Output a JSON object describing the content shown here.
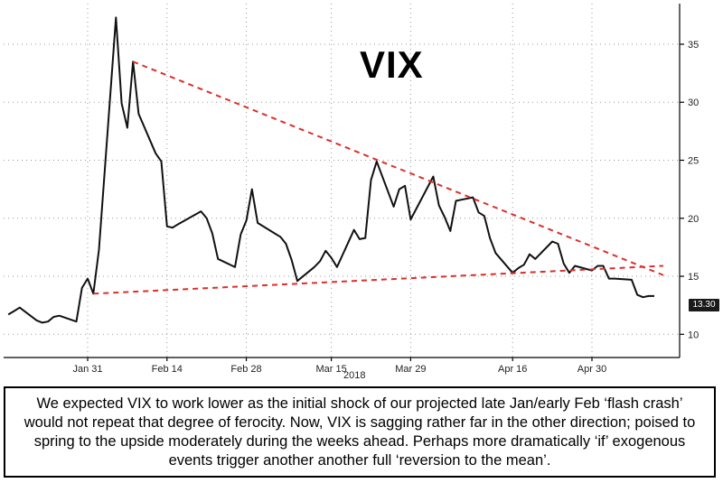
{
  "chart_data": {
    "type": "line",
    "title": "VIX",
    "year_label": "2018",
    "x_tick_labels": [
      "Jan 31",
      "Feb 14",
      "Feb 28",
      "Mar 15",
      "Mar 29",
      "Apr 16",
      "Apr 30"
    ],
    "y_ticks": [
      10,
      15,
      20,
      25,
      30,
      35
    ],
    "ylim": [
      8,
      38.5
    ],
    "grid": true,
    "y_axis_position": "right",
    "last_value_label": "13.30",
    "series": [
      {
        "color": "#111111",
        "x": [
          "2018-01-17",
          "2018-01-18",
          "2018-01-19",
          "2018-01-22",
          "2018-01-23",
          "2018-01-24",
          "2018-01-25",
          "2018-01-26",
          "2018-01-29",
          "2018-01-30",
          "2018-01-31",
          "2018-02-01",
          "2018-02-02",
          "2018-02-05",
          "2018-02-06",
          "2018-02-07",
          "2018-02-08",
          "2018-02-09",
          "2018-02-12",
          "2018-02-13",
          "2018-02-14",
          "2018-02-15",
          "2018-02-16",
          "2018-02-20",
          "2018-02-21",
          "2018-02-22",
          "2018-02-23",
          "2018-02-26",
          "2018-02-27",
          "2018-02-28",
          "2018-03-01",
          "2018-03-02",
          "2018-03-05",
          "2018-03-06",
          "2018-03-07",
          "2018-03-08",
          "2018-03-09",
          "2018-03-12",
          "2018-03-13",
          "2018-03-14",
          "2018-03-15",
          "2018-03-16",
          "2018-03-19",
          "2018-03-20",
          "2018-03-21",
          "2018-03-22",
          "2018-03-23",
          "2018-03-26",
          "2018-03-27",
          "2018-03-28",
          "2018-03-29",
          "2018-04-02",
          "2018-04-03",
          "2018-04-04",
          "2018-04-05",
          "2018-04-06",
          "2018-04-09",
          "2018-04-10",
          "2018-04-11",
          "2018-04-12",
          "2018-04-13",
          "2018-04-16",
          "2018-04-17",
          "2018-04-18",
          "2018-04-19",
          "2018-04-20",
          "2018-04-23",
          "2018-04-24",
          "2018-04-25",
          "2018-04-26",
          "2018-04-27",
          "2018-04-30",
          "2018-05-01",
          "2018-05-02",
          "2018-05-03",
          "2018-05-04",
          "2018-05-07",
          "2018-05-08",
          "2018-05-09",
          "2018-05-10",
          "2018-05-11"
        ],
        "values": [
          11.7,
          12.0,
          12.3,
          11.2,
          11.0,
          11.1,
          11.5,
          11.6,
          11.1,
          14.0,
          14.8,
          13.5,
          17.3,
          37.3,
          29.9,
          27.8,
          33.5,
          29.0,
          25.6,
          24.9,
          19.3,
          19.2,
          19.5,
          20.6,
          20.0,
          18.7,
          16.5,
          15.8,
          18.6,
          19.8,
          22.5,
          19.6,
          18.7,
          18.4,
          17.8,
          16.4,
          14.6,
          15.8,
          16.3,
          17.2,
          16.6,
          15.8,
          19.0,
          18.2,
          18.3,
          23.3,
          24.9,
          21.0,
          22.5,
          22.8,
          19.9,
          23.6,
          21.1,
          20.1,
          18.9,
          21.5,
          21.8,
          20.5,
          20.2,
          18.3,
          17.0,
          15.3,
          15.7,
          16.0,
          16.9,
          16.5,
          18.0,
          17.8,
          16.1,
          15.3,
          15.9,
          15.5,
          15.9,
          15.9,
          14.8,
          14.8,
          14.7,
          13.4,
          13.2,
          13.3,
          13.3
        ]
      }
    ],
    "trendlines": [
      {
        "color": "#d9302c",
        "style": "dashed",
        "points": [
          [
            "2018-02-08",
            33.5
          ],
          [
            "2018-05-11",
            15.1
          ]
        ]
      },
      {
        "color": "#d9302c",
        "style": "dashed",
        "points": [
          [
            "2018-02-01",
            13.5
          ],
          [
            "2018-05-11",
            15.9
          ]
        ]
      }
    ]
  },
  "caption": "We expected VIX to work lower as the initial shock of our projected late Jan/early Feb ‘flash crash’ would not repeat that degree of ferocity. Now, VIX is sagging rather far in the other direction; poised to spring to the upside moderately during the weeks ahead. Perhaps more dramatically ‘if’ exogenous events trigger another another full ‘reversion to the mean’."
}
